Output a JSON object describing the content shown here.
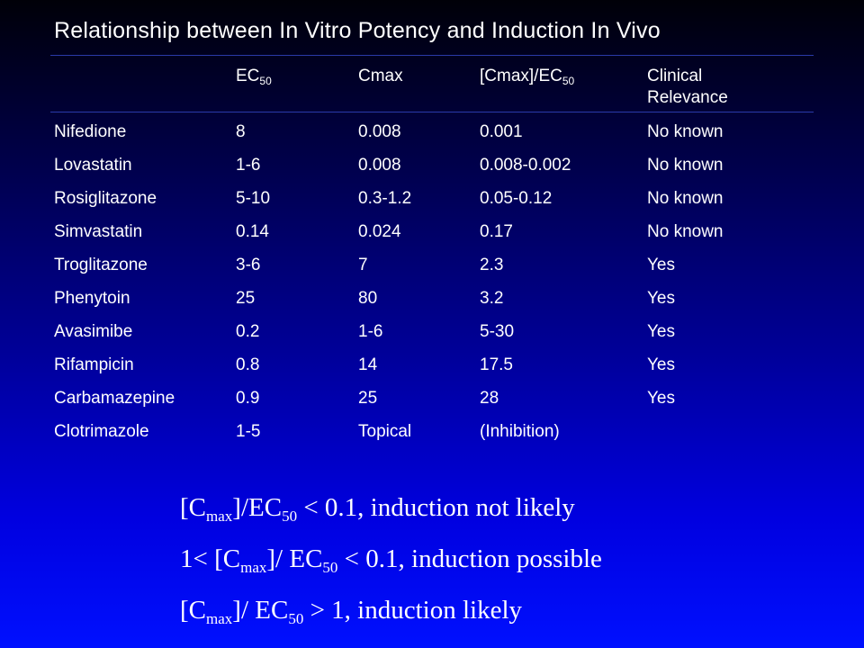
{
  "title": "Relationship between In Vitro Potency and Induction In Vivo",
  "headers": {
    "ec50": {
      "main": "EC",
      "sub": "50"
    },
    "cmax": "Cmax",
    "ratio": {
      "main": "[Cmax]/EC",
      "sub": "50"
    },
    "clinical_line1": "Clinical",
    "clinical_line2": "Relevance"
  },
  "rows": [
    {
      "drug": "Nifedione",
      "ec50": "8",
      "cmax": "0.008",
      "ratio": "0.001",
      "clinical": "No known"
    },
    {
      "drug": "Lovastatin",
      "ec50": "1-6",
      "cmax": "0.008",
      "ratio": "0.008-0.002",
      "clinical": "No known"
    },
    {
      "drug": "Rosiglitazone",
      "ec50": "5-10",
      "cmax": "0.3-1.2",
      "ratio": "0.05-0.12",
      "clinical": "No known"
    },
    {
      "drug": "Simvastatin",
      "ec50": "0.14",
      "cmax": "0.024",
      "ratio": "0.17",
      "clinical": "No known"
    },
    {
      "drug": "Troglitazone",
      "ec50": "3-6",
      "cmax": "7",
      "ratio": "2.3",
      "clinical": "Yes"
    },
    {
      "drug": "Phenytoin",
      "ec50": "25",
      "cmax": "80",
      "ratio": "3.2",
      "clinical": "Yes"
    },
    {
      "drug": "Avasimibe",
      "ec50": "0.2",
      "cmax": "1-6",
      "ratio": "5-30",
      "clinical": "Yes"
    },
    {
      "drug": "Rifampicin",
      "ec50": "0.8",
      "cmax": "14",
      "ratio": "17.5",
      "clinical": "Yes"
    },
    {
      "drug": "Carbamazepine",
      "ec50": "0.9",
      "cmax": "25",
      "ratio": "28",
      "clinical": "Yes"
    },
    {
      "drug": "Clotrimazole",
      "ec50": "1-5",
      "cmax": "Topical",
      "ratio": "(Inhibition)",
      "clinical": ""
    }
  ],
  "notes": [
    {
      "a": "[C",
      "a_sub": "max",
      "b": "]/EC",
      "b_sub": "50",
      "c": " < 0.1, induction not likely"
    },
    {
      "a": "1< [C",
      "a_sub": "max",
      "b": "]/ EC",
      "b_sub": "50",
      "c": " < 0.1, induction possible"
    },
    {
      "a": "[C",
      "a_sub": "max",
      "b": "]/ EC",
      "b_sub": "50",
      "c": " > 1, induction likely"
    }
  ]
}
